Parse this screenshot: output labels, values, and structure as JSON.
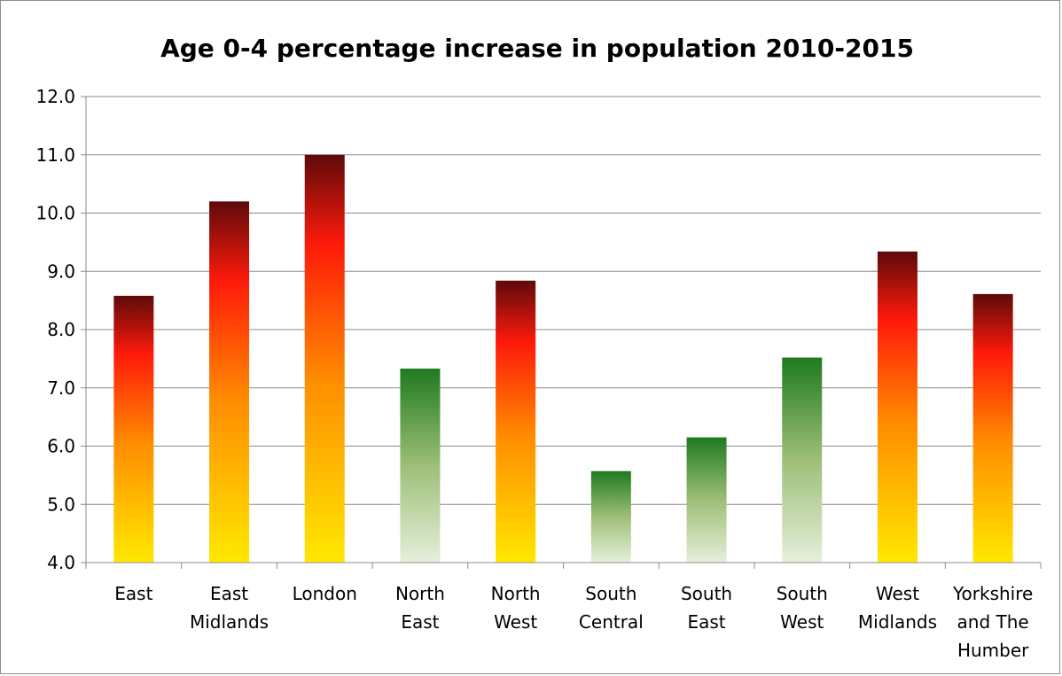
{
  "chart_data": {
    "type": "bar",
    "title": "Age 0-4 percentage increase in population 2010-2015",
    "xlabel": "",
    "ylabel": "",
    "ylim": [
      4.0,
      12.0
    ],
    "yticks": [
      "4.0",
      "5.0",
      "6.0",
      "7.0",
      "8.0",
      "9.0",
      "10.0",
      "11.0",
      "12.0"
    ],
    "grid": true,
    "legend": "none",
    "categories": [
      [
        "East"
      ],
      [
        "East",
        "Midlands"
      ],
      [
        "London"
      ],
      [
        "North",
        "East"
      ],
      [
        "North",
        "West"
      ],
      [
        "South",
        "Central"
      ],
      [
        "South",
        "East"
      ],
      [
        "South",
        "West"
      ],
      [
        "West",
        "Midlands"
      ],
      [
        "Yorkshire",
        "and The",
        "Humber"
      ]
    ],
    "values": [
      8.58,
      10.2,
      11.0,
      7.33,
      8.84,
      5.57,
      6.15,
      7.52,
      9.34,
      8.61
    ],
    "bar_styles": [
      "warm",
      "warm",
      "warm",
      "green",
      "warm",
      "green",
      "green",
      "green",
      "warm",
      "warm"
    ],
    "colors": {
      "warm_top": "#5e0a0a",
      "warm_upper": "#ff1a0a",
      "warm_mid": "#ff8c00",
      "warm_bottom": "#ffe800",
      "green_top": "#1f7a1f",
      "green_mid": "#9dbf77",
      "green_bottom": "#e6efdc",
      "gridline": "#8c8c8c",
      "axis": "#8c8c8c"
    }
  }
}
